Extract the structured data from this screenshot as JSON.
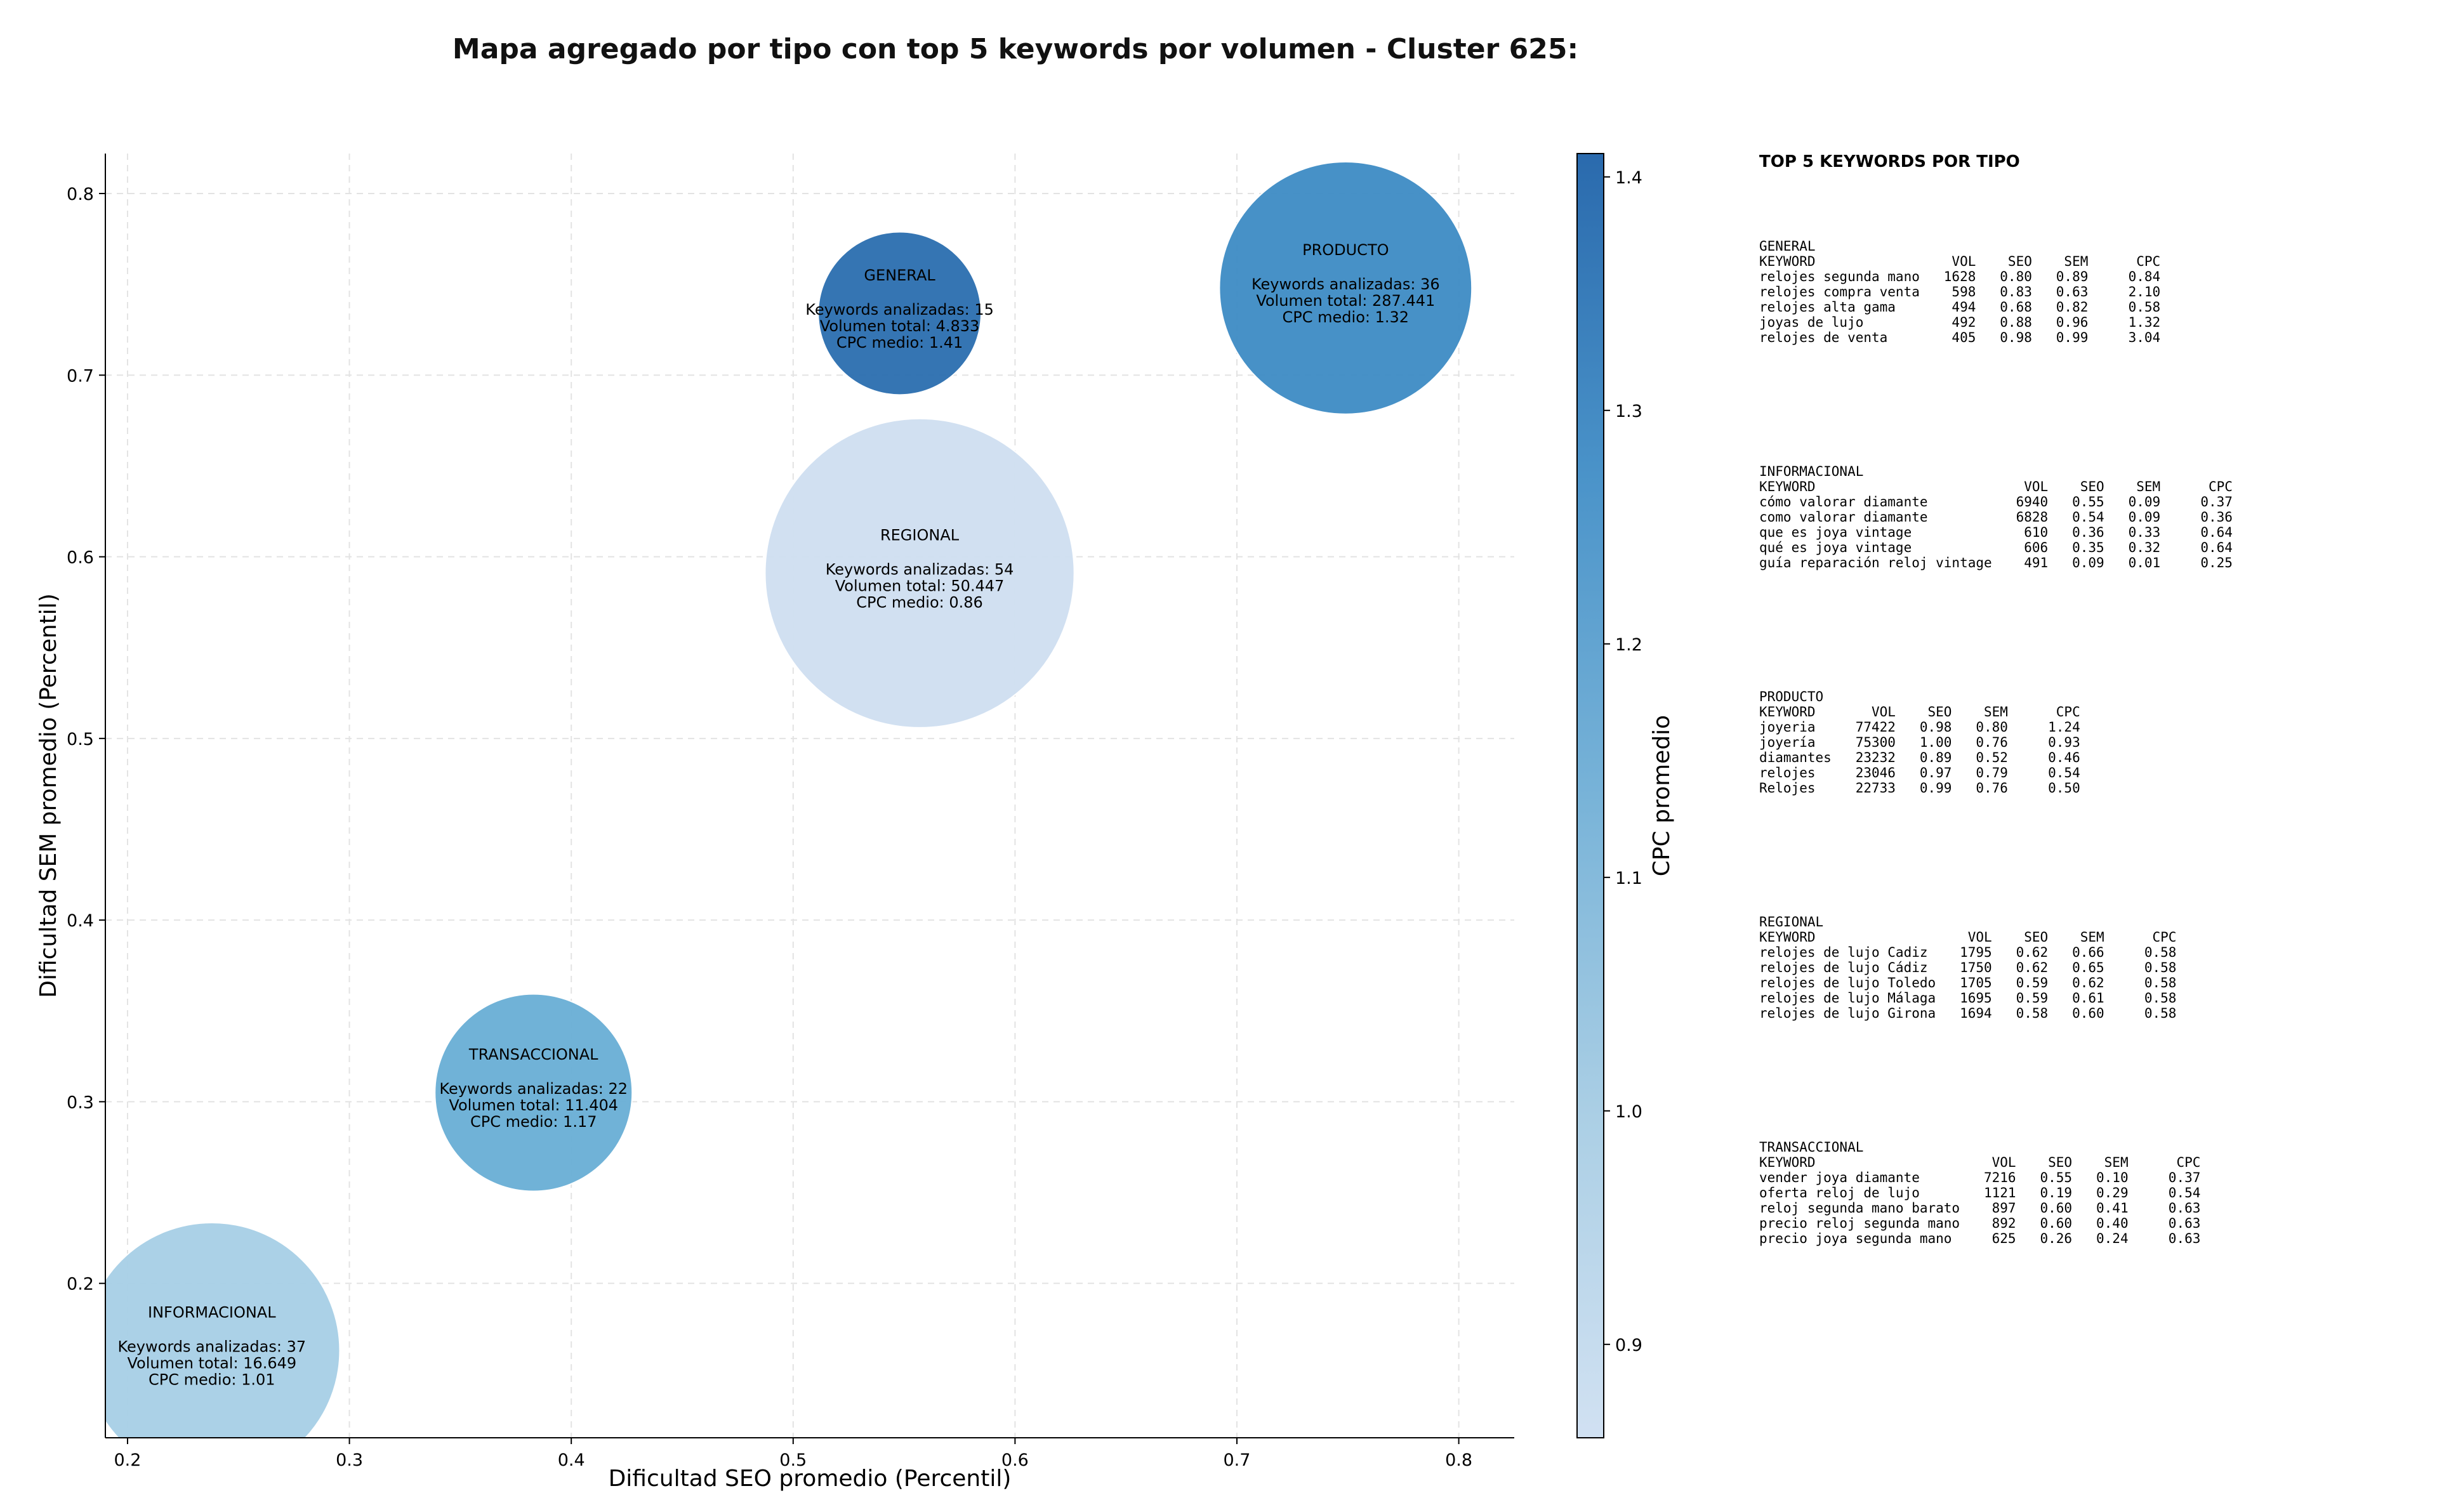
{
  "chart_data": {
    "type": "scatter",
    "title": "Mapa agregado por tipo con top 5 keywords por volumen - Cluster 625:",
    "xlabel": "Dificultad SEO promedio (Percentil)",
    "ylabel": "Dificultad SEM promedio (Percentil)",
    "xlim": [
      0.19,
      0.825
    ],
    "ylim": [
      0.115,
      0.822
    ],
    "xticks": [
      "0.2",
      "0.3",
      "0.4",
      "0.5",
      "0.6",
      "0.7",
      "0.8"
    ],
    "yticks": [
      "0.2",
      "0.3",
      "0.4",
      "0.5",
      "0.6",
      "0.7",
      "0.8"
    ],
    "grid": true,
    "size_encoding": "Keywords analizadas",
    "color_encoding": "CPC medio",
    "colorbar": {
      "label": "CPC promedio",
      "range": [
        0.86,
        1.41
      ],
      "ticks": [
        "0.9",
        "1.0",
        "1.1",
        "1.2",
        "1.3",
        "1.4"
      ]
    },
    "points": [
      {
        "name": "GENERAL",
        "x": 0.548,
        "y": 0.734,
        "keywords": 15,
        "volumen": "4.833",
        "cpc": 1.41,
        "color": "#2d6fb0",
        "r_label": "Keywords analizadas: 15",
        "v_label": "Volumen total: 4.833",
        "c_label": "CPC medio: 1.41"
      },
      {
        "name": "PRODUCTO",
        "x": 0.749,
        "y": 0.748,
        "keywords": 36,
        "volumen": "287.441",
        "cpc": 1.32,
        "color": "#3f8cc5",
        "r_label": "Keywords analizadas: 36",
        "v_label": "Volumen total: 287.441",
        "c_label": "CPC medio: 1.32"
      },
      {
        "name": "REGIONAL",
        "x": 0.557,
        "y": 0.591,
        "keywords": 54,
        "volumen": "50.447",
        "cpc": 0.86,
        "color": "#cfdff0",
        "r_label": "Keywords analizadas: 54",
        "v_label": "Volumen total: 50.447",
        "c_label": "CPC medio: 0.86"
      },
      {
        "name": "TRANSACCIONAL",
        "x": 0.383,
        "y": 0.305,
        "keywords": 22,
        "volumen": "11.404",
        "cpc": 1.17,
        "color": "#6aafd5",
        "r_label": "Keywords analizadas: 22",
        "v_label": "Volumen total: 11.404",
        "c_label": "CPC medio: 1.17"
      },
      {
        "name": "INFORMACIONAL",
        "x": 0.238,
        "y": 0.163,
        "keywords": 37,
        "volumen": "16.649",
        "cpc": 1.01,
        "color": "#a8cfe6",
        "r_label": "Keywords analizadas: 37",
        "v_label": "Volumen total: 16.649",
        "c_label": "CPC medio: 1.01"
      }
    ]
  },
  "top5": {
    "heading": "TOP 5 KEYWORDS POR TIPO",
    "blocks": [
      {
        "name": "GENERAL",
        "lines": [
          "GENERAL",
          "KEYWORD                 VOL    SEO    SEM      CPC",
          "relojes segunda mano   1628   0.80   0.89     0.84",
          "relojes compra venta    598   0.83   0.63     2.10",
          "relojes alta gama       494   0.68   0.82     0.58",
          "joyas de lujo           492   0.88   0.96     1.32",
          "relojes de venta        405   0.98   0.99     3.04"
        ]
      },
      {
        "name": "INFORMACIONAL",
        "lines": [
          "INFORMACIONAL",
          "KEYWORD                          VOL    SEO    SEM      CPC",
          "cómo valorar diamante           6940   0.55   0.09     0.37",
          "como valorar diamante           6828   0.54   0.09     0.36",
          "que es joya vintage              610   0.36   0.33     0.64",
          "qué es joya vintage              606   0.35   0.32     0.64",
          "guía reparación reloj vintage    491   0.09   0.01     0.25"
        ]
      },
      {
        "name": "PRODUCTO",
        "lines": [
          "PRODUCTO",
          "KEYWORD       VOL    SEO    SEM      CPC",
          "joyeria     77422   0.98   0.80     1.24",
          "joyería     75300   1.00   0.76     0.93",
          "diamantes   23232   0.89   0.52     0.46",
          "relojes     23046   0.97   0.79     0.54",
          "Relojes     22733   0.99   0.76     0.50"
        ]
      },
      {
        "name": "REGIONAL",
        "lines": [
          "REGIONAL",
          "KEYWORD                   VOL    SEO    SEM      CPC",
          "relojes de lujo Cadiz    1795   0.62   0.66     0.58",
          "relojes de lujo Cádiz    1750   0.62   0.65     0.58",
          "relojes de lujo Toledo   1705   0.59   0.62     0.58",
          "relojes de lujo Málaga   1695   0.59   0.61     0.58",
          "relojes de lujo Girona   1694   0.58   0.60     0.58"
        ]
      },
      {
        "name": "TRANSACCIONAL",
        "lines": [
          "TRANSACCIONAL",
          "KEYWORD                      VOL    SEO    SEM      CPC",
          "vender joya diamante        7216   0.55   0.10     0.37",
          "oferta reloj de lujo        1121   0.19   0.29     0.54",
          "reloj segunda mano barato    897   0.60   0.41     0.63",
          "precio reloj segunda mano    892   0.60   0.40     0.63",
          "precio joya segunda mano     625   0.26   0.24     0.63"
        ]
      }
    ]
  }
}
